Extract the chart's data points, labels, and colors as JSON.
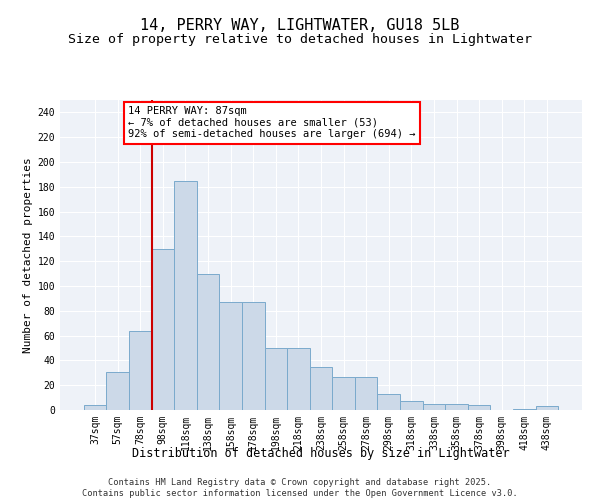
{
  "title": "14, PERRY WAY, LIGHTWATER, GU18 5LB",
  "subtitle": "Size of property relative to detached houses in Lightwater",
  "xlabel": "Distribution of detached houses by size in Lightwater",
  "ylabel": "Number of detached properties",
  "bar_labels": [
    "37sqm",
    "57sqm",
    "78sqm",
    "98sqm",
    "118sqm",
    "138sqm",
    "158sqm",
    "178sqm",
    "198sqm",
    "218sqm",
    "238sqm",
    "258sqm",
    "278sqm",
    "298sqm",
    "318sqm",
    "338sqm",
    "358sqm",
    "378sqm",
    "398sqm",
    "418sqm",
    "438sqm"
  ],
  "bar_values": [
    4,
    31,
    64,
    130,
    185,
    110,
    87,
    87,
    50,
    50,
    35,
    27,
    27,
    13,
    7,
    5,
    5,
    4,
    0,
    1,
    3
  ],
  "bar_color": "#ccd9e8",
  "bar_edgecolor": "#7aaacc",
  "vline_color": "#cc0000",
  "vline_x_index": 2,
  "annotation_text": "14 PERRY WAY: 87sqm\n← 7% of detached houses are smaller (53)\n92% of semi-detached houses are larger (694) →",
  "ylim": [
    0,
    250
  ],
  "yticks": [
    0,
    20,
    40,
    60,
    80,
    100,
    120,
    140,
    160,
    180,
    200,
    220,
    240
  ],
  "background_color": "#eef2f8",
  "grid_color": "#ffffff",
  "title_fontsize": 11,
  "subtitle_fontsize": 9.5,
  "xlabel_fontsize": 8.5,
  "ylabel_fontsize": 8,
  "tick_fontsize": 7,
  "annotation_fontsize": 7.5,
  "footer_line1": "Contains HM Land Registry data © Crown copyright and database right 2025.",
  "footer_line2": "Contains public sector information licensed under the Open Government Licence v3.0."
}
